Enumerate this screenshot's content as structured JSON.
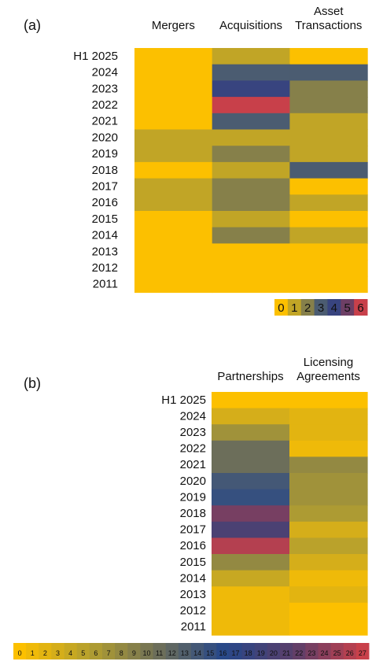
{
  "chart_data": [
    {
      "type": "heatmap",
      "panel_label": "(a)",
      "columns": [
        "Mergers",
        "Acquisitions",
        "Asset Transactions"
      ],
      "rows": [
        "H1 2025",
        "2024",
        "2023",
        "2022",
        "2021",
        "2020",
        "2019",
        "2018",
        "2017",
        "2016",
        "2015",
        "2014",
        "2013",
        "2012",
        "2011"
      ],
      "values": [
        [
          0,
          1,
          0
        ],
        [
          0,
          3,
          3
        ],
        [
          0,
          4,
          2
        ],
        [
          0,
          6,
          2
        ],
        [
          0,
          3,
          1
        ],
        [
          1,
          1,
          1
        ],
        [
          1,
          2,
          1
        ],
        [
          0,
          1,
          3
        ],
        [
          1,
          2,
          0
        ],
        [
          1,
          2,
          1
        ],
        [
          0,
          1,
          0
        ],
        [
          0,
          2,
          1
        ],
        [
          0,
          0,
          0
        ],
        [
          0,
          0,
          0
        ],
        [
          0,
          0,
          0
        ]
      ],
      "scale_ticks": [
        "0",
        "1",
        "2",
        "3",
        "4",
        "5",
        "6"
      ],
      "scale_range": [
        0,
        6
      ]
    },
    {
      "type": "heatmap",
      "panel_label": "(b)",
      "columns": [
        "Partnerships",
        "Licensing Agreements"
      ],
      "rows": [
        "H1 2025",
        "2024",
        "2023",
        "2022",
        "2021",
        "2020",
        "2019",
        "2018",
        "2017",
        "2016",
        "2015",
        "2014",
        "2013",
        "2012",
        "2011"
      ],
      "values": [
        [
          0,
          0
        ],
        [
          3,
          2
        ],
        [
          7,
          2
        ],
        [
          11,
          1
        ],
        [
          11,
          8
        ],
        [
          14,
          7
        ],
        [
          15,
          7
        ],
        [
          23,
          6
        ],
        [
          20,
          3
        ],
        [
          26,
          5
        ],
        [
          8,
          3
        ],
        [
          4,
          1
        ],
        [
          1,
          2
        ],
        [
          1,
          0
        ],
        [
          1,
          0
        ]
      ],
      "scale_ticks": [
        "0",
        "1",
        "2",
        "3",
        "4",
        "5",
        "6",
        "7",
        "8",
        "9",
        "10",
        "11",
        "12",
        "13",
        "14",
        "15",
        "16",
        "17",
        "18",
        "19",
        "20",
        "21",
        "22",
        "23",
        "24",
        "25",
        "26",
        "27"
      ],
      "scale_range": [
        0,
        27
      ]
    }
  ],
  "colors": {
    "stops": [
      "#fcc000",
      "#b5a02e",
      "#6f7058",
      "#26478a",
      "#5b3f6a",
      "#c8404a"
    ]
  }
}
